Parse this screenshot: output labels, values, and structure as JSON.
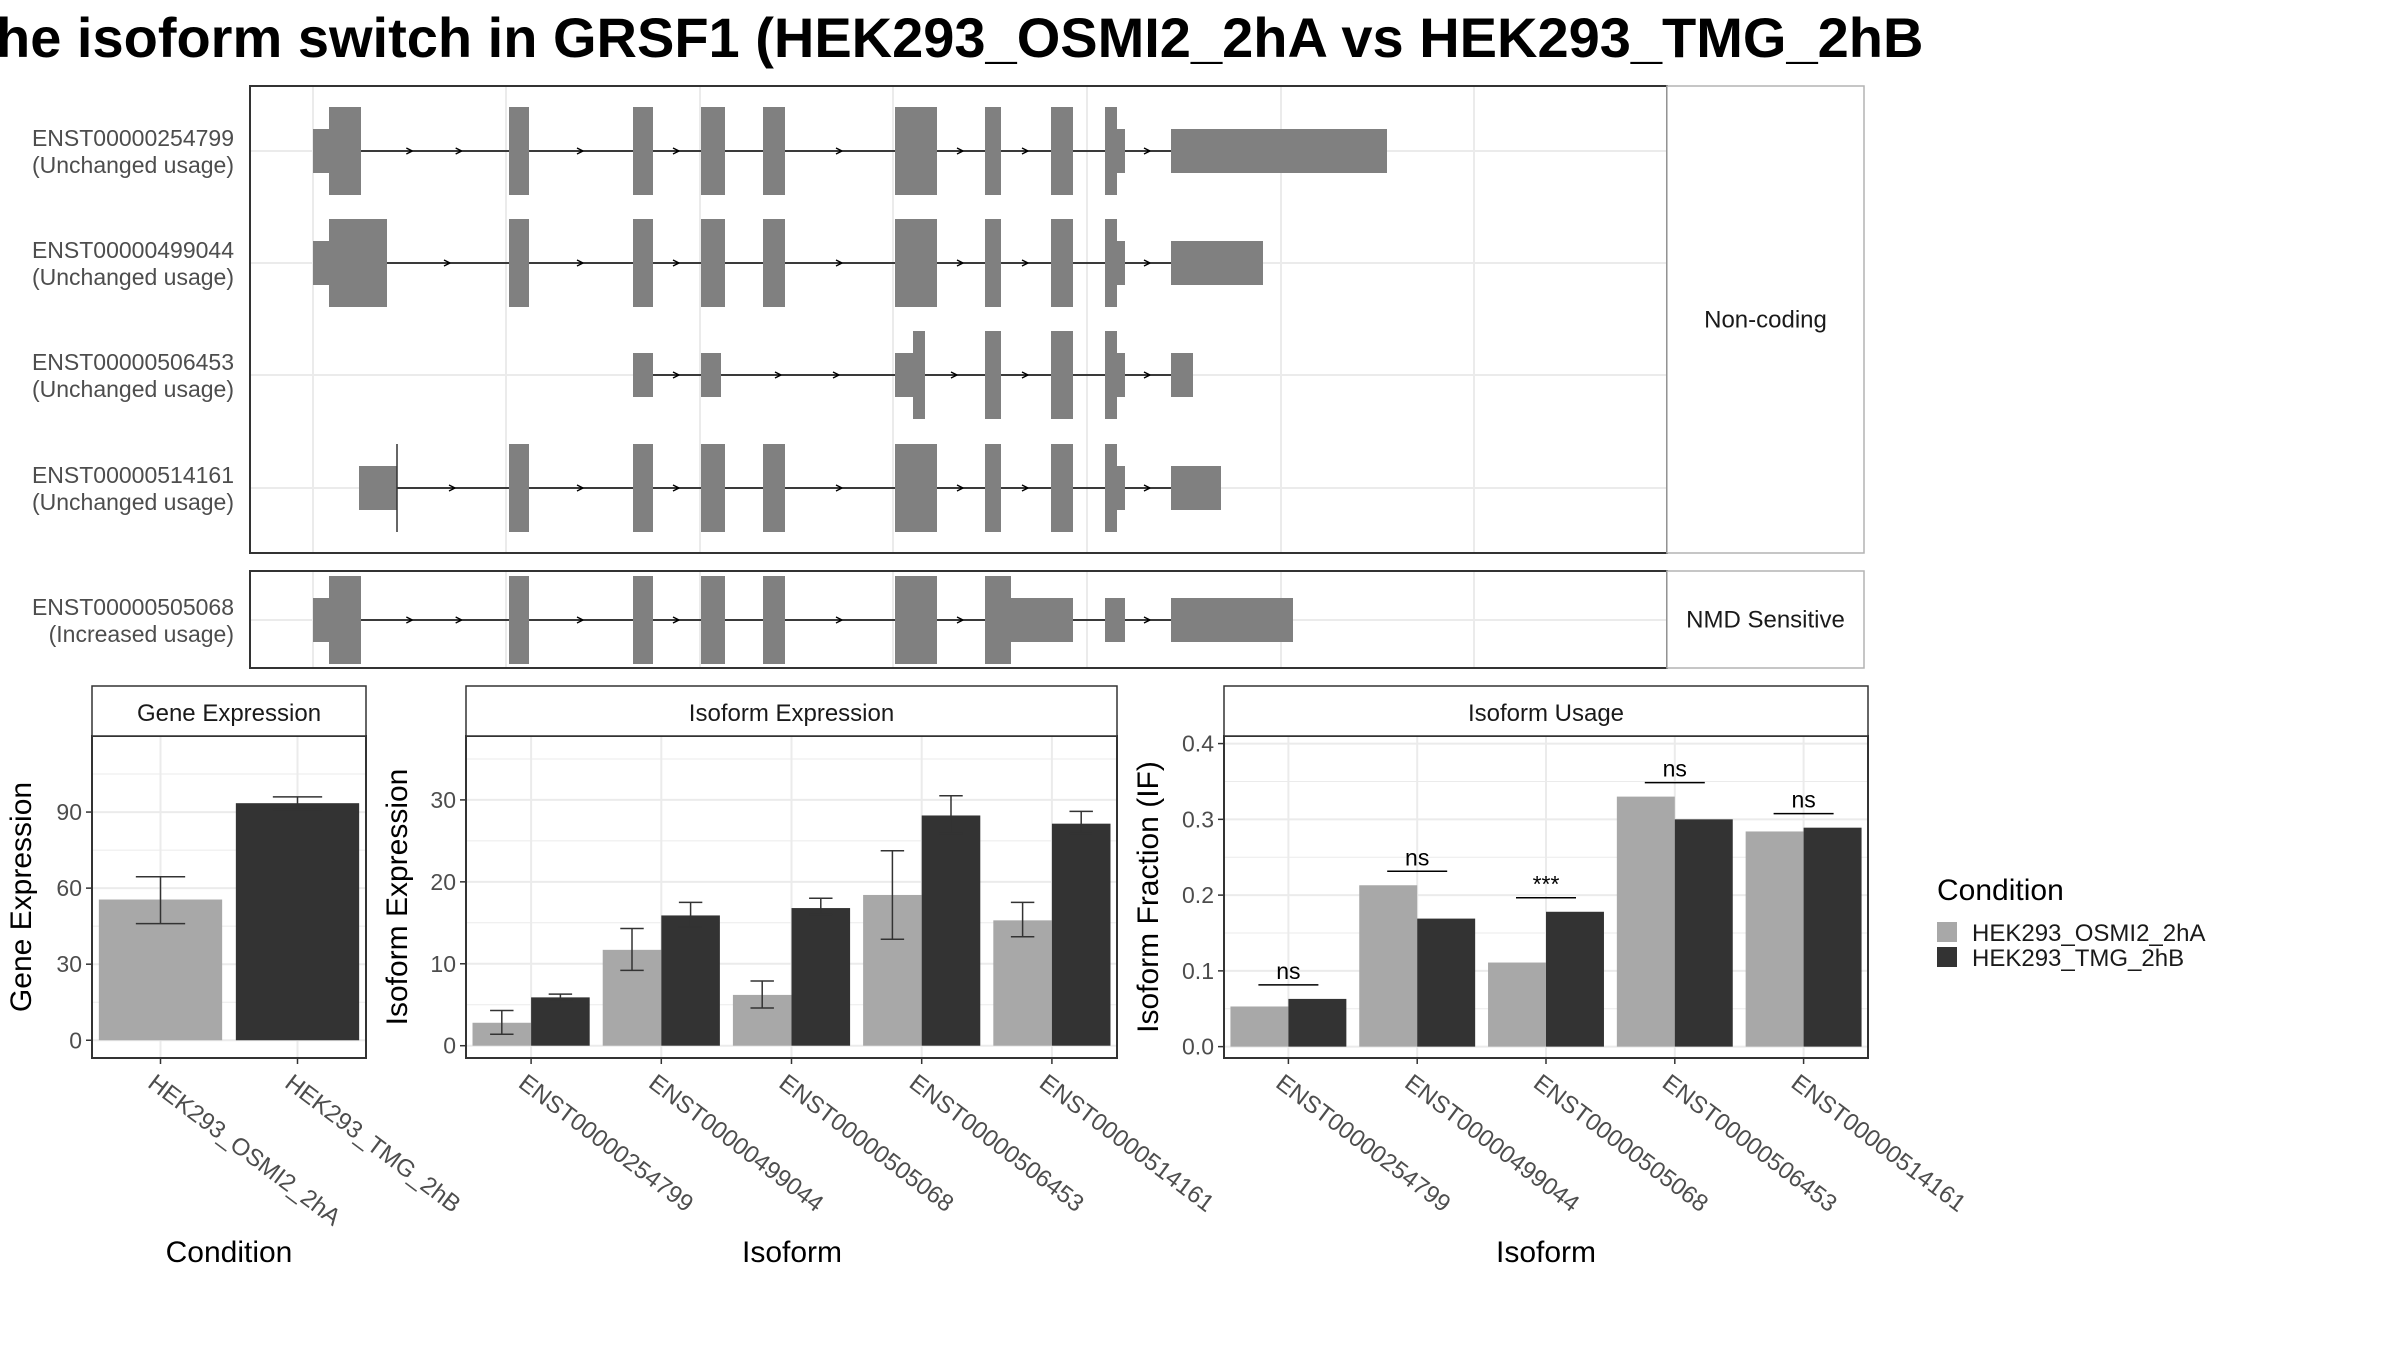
{
  "title": "he isoform switch in GRSF1 (HEK293_OSMI2_2hA vs HEK293_TMG_2hB",
  "colors": {
    "osmi": "#a8a8a8",
    "tmg": "#333333",
    "exon": "#808080",
    "panel_border": "#333333",
    "strip_border": "#b3b3b3",
    "grid": "#ebebeb"
  },
  "structure": {
    "groups": [
      {
        "label": "Non-coding",
        "transcripts": [
          {
            "id": "ENST00000254799",
            "usage": "(Unchanged usage)",
            "exons": [
              [
                0,
                8,
                "s"
              ],
              [
                8,
                24,
                "t"
              ],
              [
                98,
                108,
                "t"
              ],
              [
                160,
                170,
                "t"
              ],
              [
                194,
                206,
                "t"
              ],
              [
                225,
                236,
                "t"
              ],
              [
                291,
                312,
                "t"
              ],
              [
                336,
                344,
                "t"
              ],
              [
                369,
                380,
                "t"
              ],
              [
                396,
                402,
                "t"
              ],
              [
                402,
                406,
                "s"
              ],
              [
                429,
                537,
                "s"
              ]
            ]
          },
          {
            "id": "ENST00000499044",
            "usage": "(Unchanged usage)",
            "exons": [
              [
                0,
                8,
                "s"
              ],
              [
                8,
                37,
                "t"
              ],
              [
                98,
                108,
                "t"
              ],
              [
                160,
                170,
                "t"
              ],
              [
                194,
                206,
                "t"
              ],
              [
                225,
                236,
                "t"
              ],
              [
                291,
                312,
                "t"
              ],
              [
                336,
                344,
                "t"
              ],
              [
                369,
                380,
                "t"
              ],
              [
                396,
                402,
                "t"
              ],
              [
                402,
                406,
                "s"
              ],
              [
                429,
                475,
                "s"
              ]
            ]
          },
          {
            "id": "ENST00000506453",
            "usage": "(Unchanged usage)",
            "exons": [
              [
                160,
                170,
                "s"
              ],
              [
                194,
                204,
                "s"
              ],
              [
                291,
                300,
                "s"
              ],
              [
                300,
                306,
                "t"
              ],
              [
                336,
                344,
                "t"
              ],
              [
                369,
                380,
                "t"
              ],
              [
                396,
                402,
                "t"
              ],
              [
                402,
                406,
                "s"
              ],
              [
                429,
                440,
                "s"
              ]
            ]
          },
          {
            "id": "ENST00000514161",
            "usage": "(Unchanged usage)",
            "exons": [
              [
                23,
                42,
                "s"
              ],
              [
                98,
                108,
                "t"
              ],
              [
                160,
                170,
                "t"
              ],
              [
                194,
                206,
                "t"
              ],
              [
                225,
                236,
                "t"
              ],
              [
                291,
                312,
                "t"
              ],
              [
                336,
                344,
                "t"
              ],
              [
                369,
                380,
                "t"
              ],
              [
                396,
                402,
                "t"
              ],
              [
                402,
                406,
                "s"
              ],
              [
                429,
                454,
                "s"
              ]
            ]
          }
        ]
      },
      {
        "label": "NMD Sensitive",
        "transcripts": [
          {
            "id": "ENST00000505068",
            "usage": "(Increased usage)",
            "exons": [
              [
                0,
                8,
                "s"
              ],
              [
                8,
                24,
                "t"
              ],
              [
                98,
                108,
                "t"
              ],
              [
                160,
                170,
                "t"
              ],
              [
                194,
                206,
                "t"
              ],
              [
                225,
                236,
                "t"
              ],
              [
                291,
                312,
                "t"
              ],
              [
                336,
                349,
                "t"
              ],
              [
                349,
                380,
                "s"
              ],
              [
                396,
                406,
                "s"
              ],
              [
                429,
                490,
                "s"
              ]
            ]
          }
        ]
      }
    ]
  },
  "chart_data": [
    {
      "type": "bar",
      "title": "Gene Expression",
      "xlabel": "Condition",
      "ylabel": "Gene Expression",
      "ylim": [
        -7,
        120
      ],
      "yticks": [
        "0",
        "30",
        "60",
        "90"
      ],
      "categories": [
        "HEK293_OSMI2_2hA",
        "HEK293_TMG_2hB"
      ],
      "values": [
        55.5,
        93.5
      ],
      "error": [
        [
          46,
          64.5
        ],
        [
          91,
          96
        ]
      ]
    },
    {
      "type": "bar",
      "title": "Isoform Expression",
      "xlabel": "Isoform",
      "ylabel": "Isoform Expression",
      "ylim": [
        -1.5,
        37.8
      ],
      "yticks": [
        "0",
        "10",
        "20",
        "30"
      ],
      "categories": [
        "ENST00000254799",
        "ENST00000499044",
        "ENST00000505068",
        "ENST00000506453",
        "ENST00000514161"
      ],
      "series": [
        {
          "name": "HEK293_OSMI2_2hA",
          "values": [
            2.8,
            11.7,
            6.2,
            18.4,
            15.3
          ],
          "error": [
            [
              1.4,
              4.3
            ],
            [
              9.2,
              14.3
            ],
            [
              4.6,
              7.9
            ],
            [
              13,
              23.8
            ],
            [
              13.3,
              17.5
            ]
          ]
        },
        {
          "name": "HEK293_TMG_2hB",
          "values": [
            5.9,
            15.9,
            16.8,
            28.1,
            27.1
          ],
          "error": [
            [
              5.6,
              6.3
            ],
            [
              14.5,
              17.5
            ],
            [
              16,
              18
            ],
            [
              25.9,
              30.5
            ],
            [
              25.9,
              28.6
            ]
          ]
        }
      ]
    },
    {
      "type": "bar",
      "title": "Isoform Usage",
      "xlabel": "Isoform",
      "ylabel": "Isoform Fraction (IF)",
      "ylim": [
        -0.015,
        0.41
      ],
      "yticks": [
        "0.0",
        "0.1",
        "0.2",
        "0.3",
        "0.4"
      ],
      "categories": [
        "ENST00000254799",
        "ENST00000499044",
        "ENST00000505068",
        "ENST00000506453",
        "ENST00000514161"
      ],
      "series": [
        {
          "name": "HEK293_OSMI2_2hA",
          "values": [
            0.053,
            0.213,
            0.111,
            0.33,
            0.284
          ]
        },
        {
          "name": "HEK293_TMG_2hB",
          "values": [
            0.063,
            0.169,
            0.178,
            0.3,
            0.289
          ]
        }
      ],
      "significance": [
        "ns",
        "ns",
        "***",
        "ns",
        "ns"
      ]
    }
  ],
  "legend": {
    "title": "Condition",
    "entries": [
      "HEK293_OSMI2_2hA",
      "HEK293_TMG_2hB"
    ]
  }
}
